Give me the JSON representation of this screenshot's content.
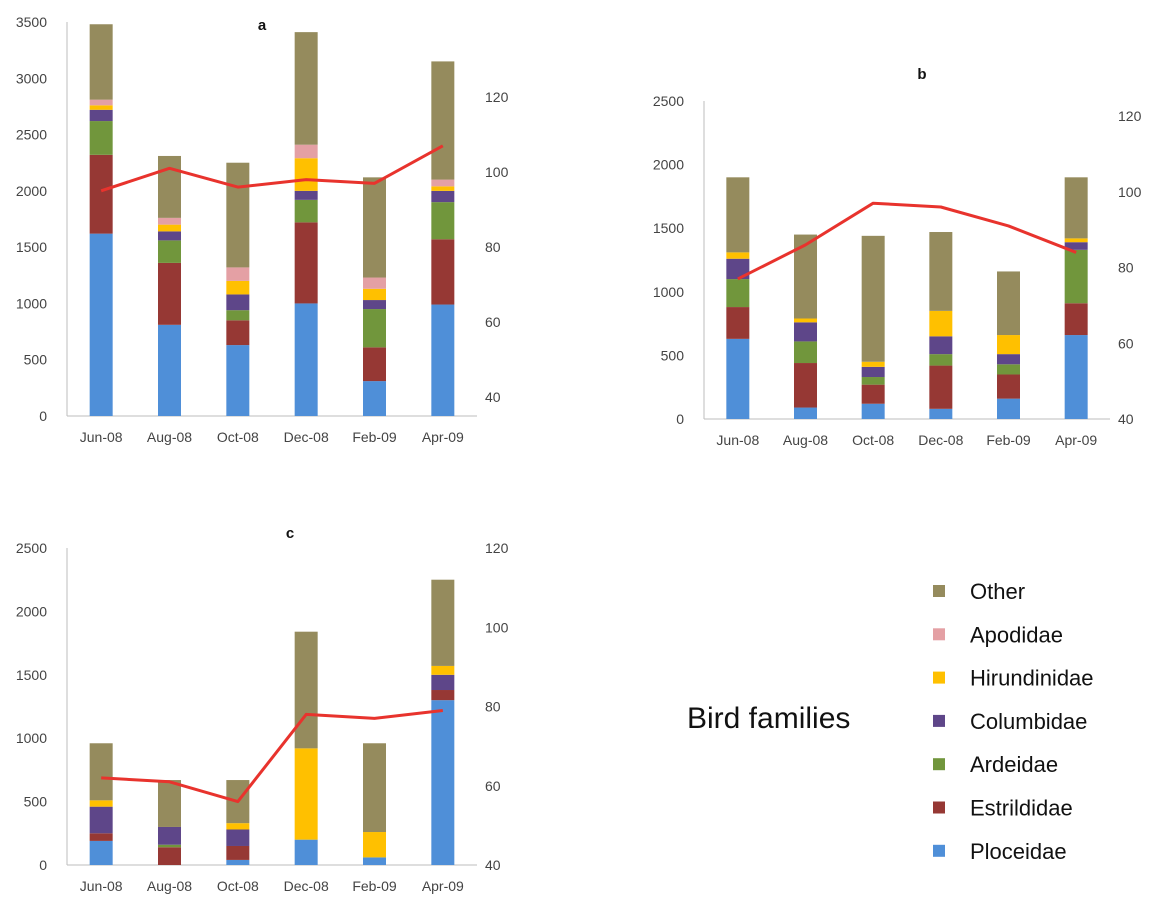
{
  "legend": {
    "title": "Bird families",
    "items": [
      {
        "name": "Other",
        "color": "#958b5d"
      },
      {
        "name": "Apodidae",
        "color": "#e4a0a4"
      },
      {
        "name": "Hirundinidae",
        "color": "#ffc000"
      },
      {
        "name": "Columbidae",
        "color": "#5e4689"
      },
      {
        "name": "Ardeidae",
        "color": "#71963c"
      },
      {
        "name": "Estrildidae",
        "color": "#963834"
      },
      {
        "name": "Ploceidae",
        "color": "#4f8fd8"
      }
    ]
  },
  "line_color": "#e8332d",
  "chart_data": [
    {
      "panel": "a",
      "type": "bar",
      "stacked": true,
      "title": "a",
      "categories": [
        "Jun-08",
        "Aug-08",
        "Oct-08",
        "Dec-08",
        "Feb-09",
        "Apr-09"
      ],
      "ylim": [
        0,
        3500
      ],
      "yticks": [
        0,
        500,
        1000,
        1500,
        2000,
        2500,
        3000,
        3500
      ],
      "y2lim": [
        35,
        140
      ],
      "y2ticks": [
        40,
        60,
        80,
        100,
        120
      ],
      "series": [
        {
          "name": "Ploceidae",
          "values": [
            1620,
            810,
            630,
            1000,
            310,
            990
          ]
        },
        {
          "name": "Estrildidae",
          "values": [
            700,
            550,
            220,
            720,
            300,
            580
          ]
        },
        {
          "name": "Ardeidae",
          "values": [
            300,
            200,
            90,
            200,
            340,
            330
          ]
        },
        {
          "name": "Columbidae",
          "values": [
            100,
            80,
            140,
            80,
            80,
            100
          ]
        },
        {
          "name": "Hirundinidae",
          "values": [
            40,
            60,
            120,
            290,
            100,
            40
          ]
        },
        {
          "name": "Apodidae",
          "values": [
            50,
            60,
            120,
            120,
            100,
            60
          ]
        },
        {
          "name": "Other",
          "values": [
            670,
            550,
            930,
            1000,
            890,
            1050
          ]
        }
      ],
      "line": [
        95,
        101,
        96,
        98,
        97,
        107
      ]
    },
    {
      "panel": "b",
      "type": "bar",
      "stacked": true,
      "title": "b",
      "categories": [
        "Jun-08",
        "Aug-08",
        "Oct-08",
        "Dec-08",
        "Feb-09",
        "Apr-09"
      ],
      "ylim": [
        0,
        2500
      ],
      "yticks": [
        0,
        500,
        1000,
        1500,
        2000,
        2500
      ],
      "y2lim": [
        40,
        124
      ],
      "y2ticks": [
        40,
        60,
        80,
        100,
        120
      ],
      "series": [
        {
          "name": "Ploceidae",
          "values": [
            630,
            90,
            120,
            80,
            160,
            660
          ]
        },
        {
          "name": "Estrildidae",
          "values": [
            250,
            350,
            150,
            340,
            190,
            250
          ]
        },
        {
          "name": "Ardeidae",
          "values": [
            220,
            170,
            60,
            90,
            80,
            420
          ]
        },
        {
          "name": "Columbidae",
          "values": [
            160,
            150,
            80,
            140,
            80,
            60
          ]
        },
        {
          "name": "Hirundinidae",
          "values": [
            50,
            30,
            40,
            200,
            150,
            30
          ]
        },
        {
          "name": "Apodidae",
          "values": [
            0,
            0,
            0,
            0,
            0,
            0
          ]
        },
        {
          "name": "Other",
          "values": [
            590,
            660,
            990,
            620,
            500,
            480
          ]
        }
      ],
      "line": [
        77,
        86,
        97,
        96,
        91,
        84
      ]
    },
    {
      "panel": "c",
      "type": "bar",
      "stacked": true,
      "title": "c",
      "categories": [
        "Jun-08",
        "Aug-08",
        "Oct-08",
        "Dec-08",
        "Feb-09",
        "Apr-09"
      ],
      "ylim": [
        0,
        2500
      ],
      "yticks": [
        0,
        500,
        1000,
        1500,
        2000,
        2500
      ],
      "y2lim": [
        40,
        120
      ],
      "y2ticks": [
        40,
        60,
        80,
        100,
        120
      ],
      "series": [
        {
          "name": "Ploceidae",
          "values": [
            190,
            0,
            40,
            200,
            60,
            1300
          ]
        },
        {
          "name": "Estrildidae",
          "values": [
            60,
            140,
            110,
            0,
            0,
            80
          ]
        },
        {
          "name": "Ardeidae",
          "values": [
            0,
            20,
            0,
            0,
            0,
            0
          ]
        },
        {
          "name": "Columbidae",
          "values": [
            210,
            140,
            130,
            0,
            0,
            120
          ]
        },
        {
          "name": "Hirundinidae",
          "values": [
            50,
            0,
            50,
            720,
            200,
            70
          ]
        },
        {
          "name": "Apodidae",
          "values": [
            0,
            0,
            0,
            0,
            0,
            0
          ]
        },
        {
          "name": "Other",
          "values": [
            450,
            370,
            340,
            920,
            700,
            680
          ]
        }
      ],
      "line": [
        62,
        61,
        56,
        78,
        77,
        79
      ]
    }
  ]
}
